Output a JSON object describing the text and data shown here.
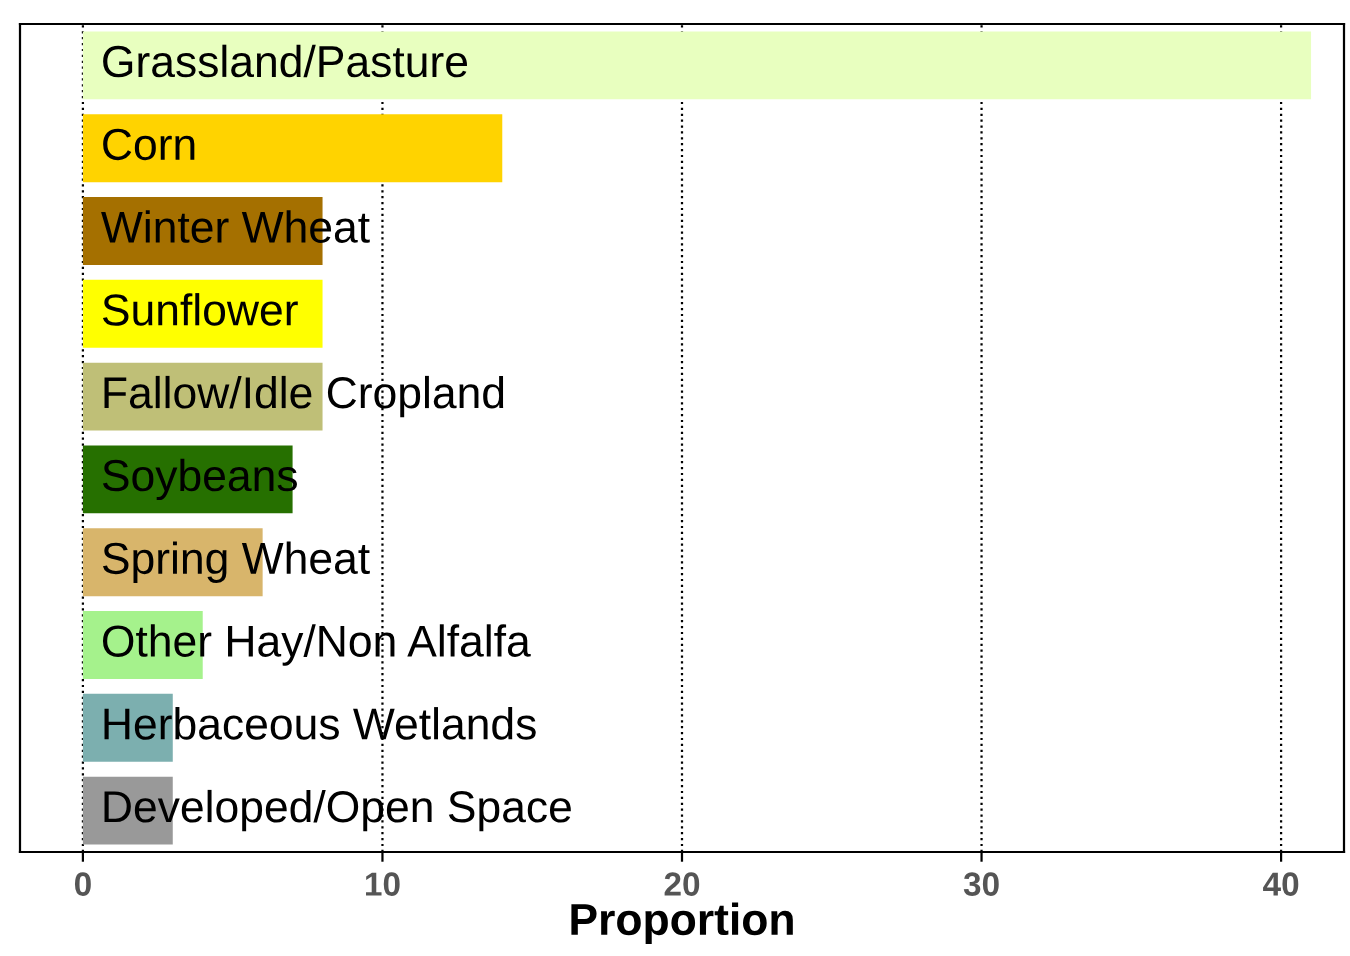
{
  "chart_data": {
    "type": "bar",
    "orientation": "horizontal",
    "xlabel": "Proportion",
    "categories": [
      "Grassland/Pasture",
      "Corn",
      "Winter Wheat",
      "Sunflower",
      "Fallow/Idle Cropland",
      "Soybeans",
      "Spring Wheat",
      "Other Hay/Non Alfalfa",
      "Herbaceous Wetlands",
      "Developed/Open Space"
    ],
    "values": [
      41,
      14,
      8,
      8,
      8,
      7,
      6,
      4,
      3,
      3
    ],
    "colors": [
      "#e8ffbf",
      "#ffd300",
      "#a57000",
      "#ffff00",
      "#bfbf77",
      "#267000",
      "#d8b56b",
      "#a5f28c",
      "#7cafaf",
      "#999999"
    ],
    "xlim": [
      -2.1,
      42.1
    ],
    "xticks": [
      0,
      10,
      20,
      30,
      40
    ],
    "grid": "x"
  }
}
